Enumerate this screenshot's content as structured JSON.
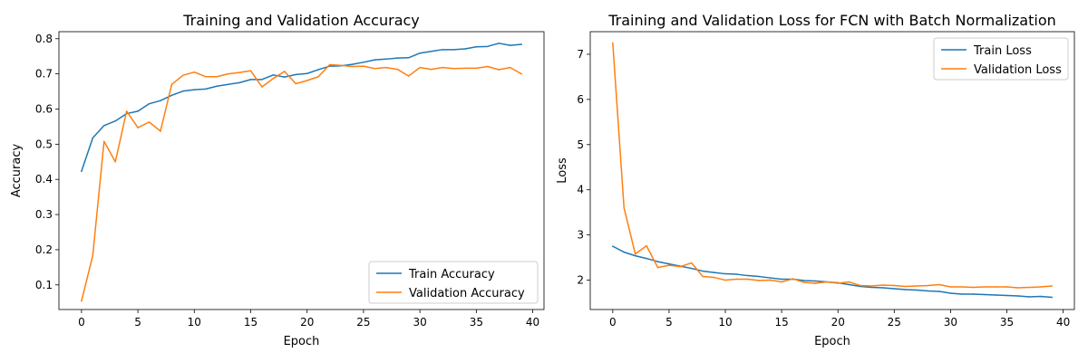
{
  "chart_data": [
    {
      "type": "line",
      "title": "Training and Validation Accuracy",
      "xlabel": "Epoch",
      "ylabel": "Accuracy",
      "xlim": [
        -2,
        41
      ],
      "ylim": [
        0.03,
        0.82
      ],
      "xticks": [
        0,
        5,
        10,
        15,
        20,
        25,
        30,
        35,
        40
      ],
      "xtick_labels": [
        "0",
        "5",
        "10",
        "15",
        "20",
        "25",
        "30",
        "35",
        "40"
      ],
      "yticks": [
        0.1,
        0.2,
        0.3,
        0.4,
        0.5,
        0.6,
        0.7,
        0.8
      ],
      "ytick_labels": [
        "0.1",
        "0.2",
        "0.3",
        "0.4",
        "0.5",
        "0.6",
        "0.7",
        "0.8"
      ],
      "grid": false,
      "legend_position": "lower-right",
      "x": [
        0,
        1,
        2,
        3,
        4,
        5,
        6,
        7,
        8,
        9,
        10,
        11,
        12,
        13,
        14,
        15,
        16,
        17,
        18,
        19,
        20,
        21,
        22,
        23,
        24,
        25,
        26,
        27,
        28,
        29,
        30,
        31,
        32,
        33,
        34,
        35,
        36,
        37,
        38,
        39
      ],
      "series": [
        {
          "name": "Train Accuracy",
          "color": "#1f77b4",
          "values": [
            0.423,
            0.518,
            0.553,
            0.566,
            0.587,
            0.594,
            0.615,
            0.624,
            0.639,
            0.651,
            0.655,
            0.657,
            0.665,
            0.67,
            0.675,
            0.684,
            0.684,
            0.697,
            0.691,
            0.698,
            0.701,
            0.712,
            0.722,
            0.723,
            0.727,
            0.733,
            0.74,
            0.742,
            0.745,
            0.746,
            0.759,
            0.764,
            0.769,
            0.769,
            0.771,
            0.777,
            0.778,
            0.787,
            0.781,
            0.784
          ]
        },
        {
          "name": "Validation Accuracy",
          "color": "#ff7f0e",
          "values": [
            0.054,
            0.184,
            0.508,
            0.45,
            0.594,
            0.547,
            0.563,
            0.537,
            0.67,
            0.696,
            0.705,
            0.692,
            0.692,
            0.7,
            0.704,
            0.709,
            0.663,
            0.687,
            0.707,
            0.672,
            0.681,
            0.692,
            0.726,
            0.724,
            0.721,
            0.722,
            0.715,
            0.718,
            0.713,
            0.694,
            0.718,
            0.713,
            0.718,
            0.715,
            0.716,
            0.716,
            0.721,
            0.712,
            0.718,
            0.7
          ]
        }
      ]
    },
    {
      "type": "line",
      "title": "Training and Validation Loss for FCN with Batch Normalization",
      "xlabel": "Epoch",
      "ylabel": "Loss",
      "xlim": [
        -2,
        41
      ],
      "ylim": [
        1.35,
        7.5
      ],
      "xticks": [
        0,
        5,
        10,
        15,
        20,
        25,
        30,
        35,
        40
      ],
      "xtick_labels": [
        "0",
        "5",
        "10",
        "15",
        "20",
        "25",
        "30",
        "35",
        "40"
      ],
      "yticks": [
        2,
        3,
        4,
        5,
        6,
        7
      ],
      "ytick_labels": [
        "2",
        "3",
        "4",
        "5",
        "6",
        "7"
      ],
      "grid": false,
      "legend_position": "upper-right",
      "x": [
        0,
        1,
        2,
        3,
        4,
        5,
        6,
        7,
        8,
        9,
        10,
        11,
        12,
        13,
        14,
        15,
        16,
        17,
        18,
        19,
        20,
        21,
        22,
        23,
        24,
        25,
        26,
        27,
        28,
        29,
        30,
        31,
        32,
        33,
        34,
        35,
        36,
        37,
        38,
        39
      ],
      "series": [
        {
          "name": "Train Loss",
          "color": "#1f77b4",
          "values": [
            2.75,
            2.62,
            2.54,
            2.48,
            2.41,
            2.36,
            2.31,
            2.26,
            2.2,
            2.17,
            2.14,
            2.13,
            2.1,
            2.08,
            2.05,
            2.02,
            2.02,
            1.99,
            1.98,
            1.96,
            1.94,
            1.9,
            1.86,
            1.84,
            1.83,
            1.81,
            1.79,
            1.78,
            1.76,
            1.75,
            1.71,
            1.69,
            1.69,
            1.68,
            1.67,
            1.66,
            1.65,
            1.63,
            1.64,
            1.62
          ]
        },
        {
          "name": "Validation Loss",
          "color": "#ff7f0e",
          "values": [
            7.25,
            3.6,
            2.58,
            2.76,
            2.28,
            2.33,
            2.3,
            2.38,
            2.08,
            2.06,
            2.0,
            2.02,
            2.02,
            1.99,
            2.0,
            1.96,
            2.03,
            1.95,
            1.93,
            1.96,
            1.93,
            1.96,
            1.88,
            1.87,
            1.89,
            1.88,
            1.86,
            1.87,
            1.88,
            1.9,
            1.85,
            1.85,
            1.84,
            1.85,
            1.85,
            1.85,
            1.83,
            1.84,
            1.85,
            1.87
          ]
        }
      ]
    }
  ]
}
